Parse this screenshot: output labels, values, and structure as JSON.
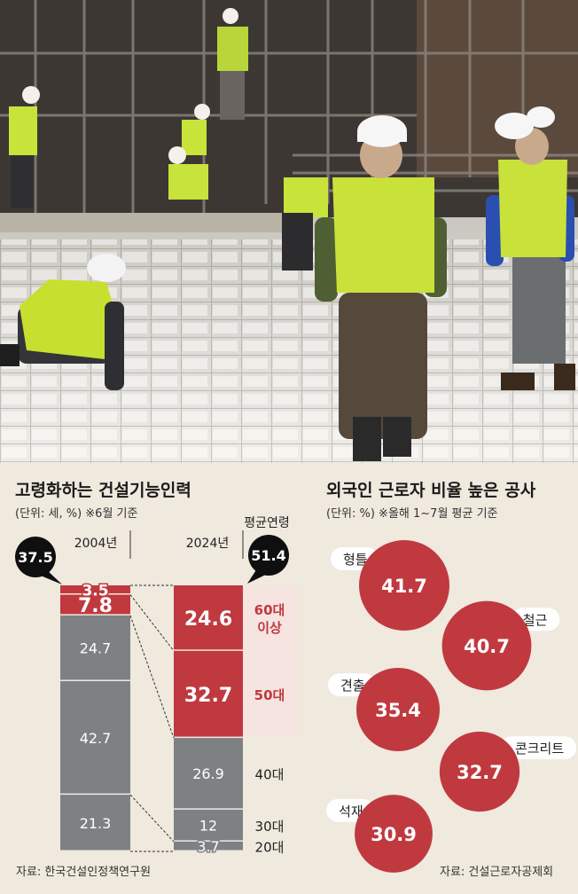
{
  "left_chart": {
    "title": "고령화하는 건설기능인력",
    "unit_note": "(단위: 세, %)  ※6월 기준",
    "year_2004": "2004년",
    "year_2024": "2024년",
    "avg_age_label": "평균연령",
    "avg_age_2004": "37.5",
    "avg_age_2024": "51.4",
    "source": "자료: 한국건설인정책연구원"
  },
  "right_chart": {
    "title": "외국인 근로자 비율 높은 공사",
    "unit_note": "(단위: %)  ※올해 1~7월 평균 기준",
    "source": "자료: 건설근로자공제회"
  },
  "colors": {
    "red": "#c0393f",
    "gray": "#7e8184",
    "pale_red": "#f6e4e1",
    "pale_gray": "#dadbdc"
  },
  "chart_data": [
    {
      "type": "bar",
      "title": "고령화하는 건설기능인력",
      "categories": [
        "2004년",
        "2024년"
      ],
      "series": [
        {
          "name": "20대",
          "values": [
            21.3,
            3.7
          ]
        },
        {
          "name": "30대",
          "values": [
            42.7,
            12
          ]
        },
        {
          "name": "40대",
          "values": [
            24.7,
            26.9
          ]
        },
        {
          "name": "50대",
          "values": [
            7.8,
            32.7
          ]
        },
        {
          "name": "60대 이상",
          "values": [
            3.5,
            24.6
          ]
        }
      ],
      "stacked": true
    },
    {
      "type": "bubble",
      "title": "외국인 근로자 비율 높은 공사",
      "categories": [
        "형틀",
        "철근",
        "견출",
        "콘크리트",
        "석재"
      ],
      "values": [
        41.7,
        40.7,
        35.4,
        32.7,
        30.9
      ]
    }
  ]
}
